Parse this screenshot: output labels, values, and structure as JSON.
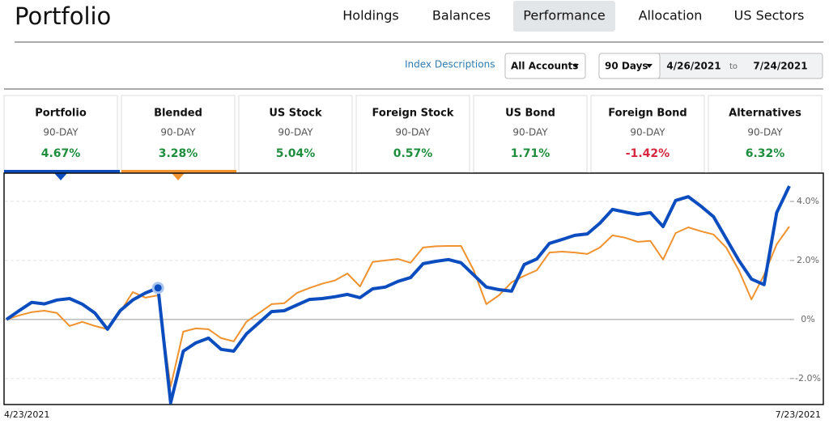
{
  "header": {
    "title": "Portfolio",
    "tabs": [
      "Holdings",
      "Balances",
      "Performance",
      "Allocation",
      "US Sectors"
    ],
    "active_tab": 2
  },
  "controls": {
    "index_link": "Index Descriptions",
    "account": "All Accounts",
    "period": "90 Days",
    "start_date": "4/26/2021",
    "separator": "to",
    "end_date": "7/24/2021"
  },
  "cards": [
    {
      "name": "Portfolio",
      "period": "90-DAY",
      "return": "4.67%"
    },
    {
      "name": "Blended",
      "period": "90-DAY",
      "return": "3.28%"
    },
    {
      "name": "US Stock",
      "period": "90-DAY",
      "return": "5.04%"
    },
    {
      "name": "Foreign Stock",
      "period": "90-DAY",
      "return": "0.57%"
    },
    {
      "name": "US Bond",
      "period": "90-DAY",
      "return": "1.71%"
    },
    {
      "name": "Foreign Bond",
      "period": "90-DAY",
      "return": "-1.42%"
    },
    {
      "name": "Alternatives",
      "period": "90-DAY",
      "return": "6.32%"
    }
  ],
  "chart_data": {
    "type": "line",
    "categories": [
      "4/23/2021",
      null,
      null,
      null,
      null,
      null,
      null,
      null,
      null,
      null,
      null,
      null,
      null,
      null,
      null,
      null,
      null,
      null,
      null,
      null,
      null,
      null,
      null,
      null,
      null,
      null,
      null,
      null,
      null,
      null,
      null,
      null,
      null,
      null,
      null,
      null,
      null,
      null,
      null,
      null,
      null,
      null,
      null,
      null,
      null,
      null,
      null,
      null,
      null,
      null,
      null,
      null,
      null,
      null,
      null,
      null,
      null,
      null,
      null,
      null,
      null,
      null,
      "7/23/2021"
    ],
    "series": [
      {
        "color": "#0b4dbf",
        "values": [
          0,
          0.3,
          0.58,
          0.53,
          0.66,
          0.71,
          0.52,
          0.22,
          -0.33,
          0.3,
          0.66,
          0.9,
          1.07,
          -2.82,
          -1.07,
          -0.79,
          -0.63,
          -1.01,
          -1.07,
          -0.49,
          -0.11,
          0.27,
          0.3,
          0.49,
          0.68,
          0.71,
          0.77,
          0.85,
          0.74,
          1.04,
          1.1,
          1.29,
          1.42,
          1.89,
          1.97,
          2.03,
          1.92,
          1.51,
          1.1,
          1.01,
          0.96,
          1.86,
          2.05,
          2.58,
          2.71,
          2.85,
          2.9,
          3.26,
          3.73,
          3.64,
          3.56,
          3.62,
          3.15,
          4.03,
          4.16,
          3.84,
          3.48,
          2.74,
          2.0,
          1.37,
          1.18,
          3.62,
          4.52
        ]
      },
      {
        "color": "#f0922e",
        "values": [
          0,
          0.14,
          0.25,
          0.3,
          0.22,
          -0.22,
          -0.08,
          -0.22,
          -0.33,
          0.25,
          0.93,
          0.74,
          0.82,
          -2.27,
          -0.41,
          -0.3,
          -0.33,
          -0.63,
          -0.74,
          -0.08,
          0.22,
          0.52,
          0.55,
          0.9,
          1.07,
          1.21,
          1.32,
          1.56,
          1.12,
          1.95,
          2.0,
          2.05,
          1.92,
          2.44,
          2.48,
          2.49,
          2.49,
          1.67,
          0.52,
          0.82,
          1.26,
          1.48,
          1.67,
          2.27,
          2.3,
          2.27,
          2.22,
          2.44,
          2.85,
          2.77,
          2.63,
          2.66,
          2.03,
          2.93,
          3.12,
          2.99,
          2.88,
          2.44,
          1.67,
          0.68,
          1.51,
          2.55,
          3.15
        ]
      }
    ],
    "ylim": [
      -2.88,
      4.93
    ],
    "yticks": [
      {
        "value": -2,
        "label": "-2.0%"
      },
      {
        "value": 0,
        "label": "0%"
      },
      {
        "value": 2,
        "label": "2.0%"
      },
      {
        "value": 4,
        "label": "4.0%"
      }
    ],
    "grid": true
  }
}
